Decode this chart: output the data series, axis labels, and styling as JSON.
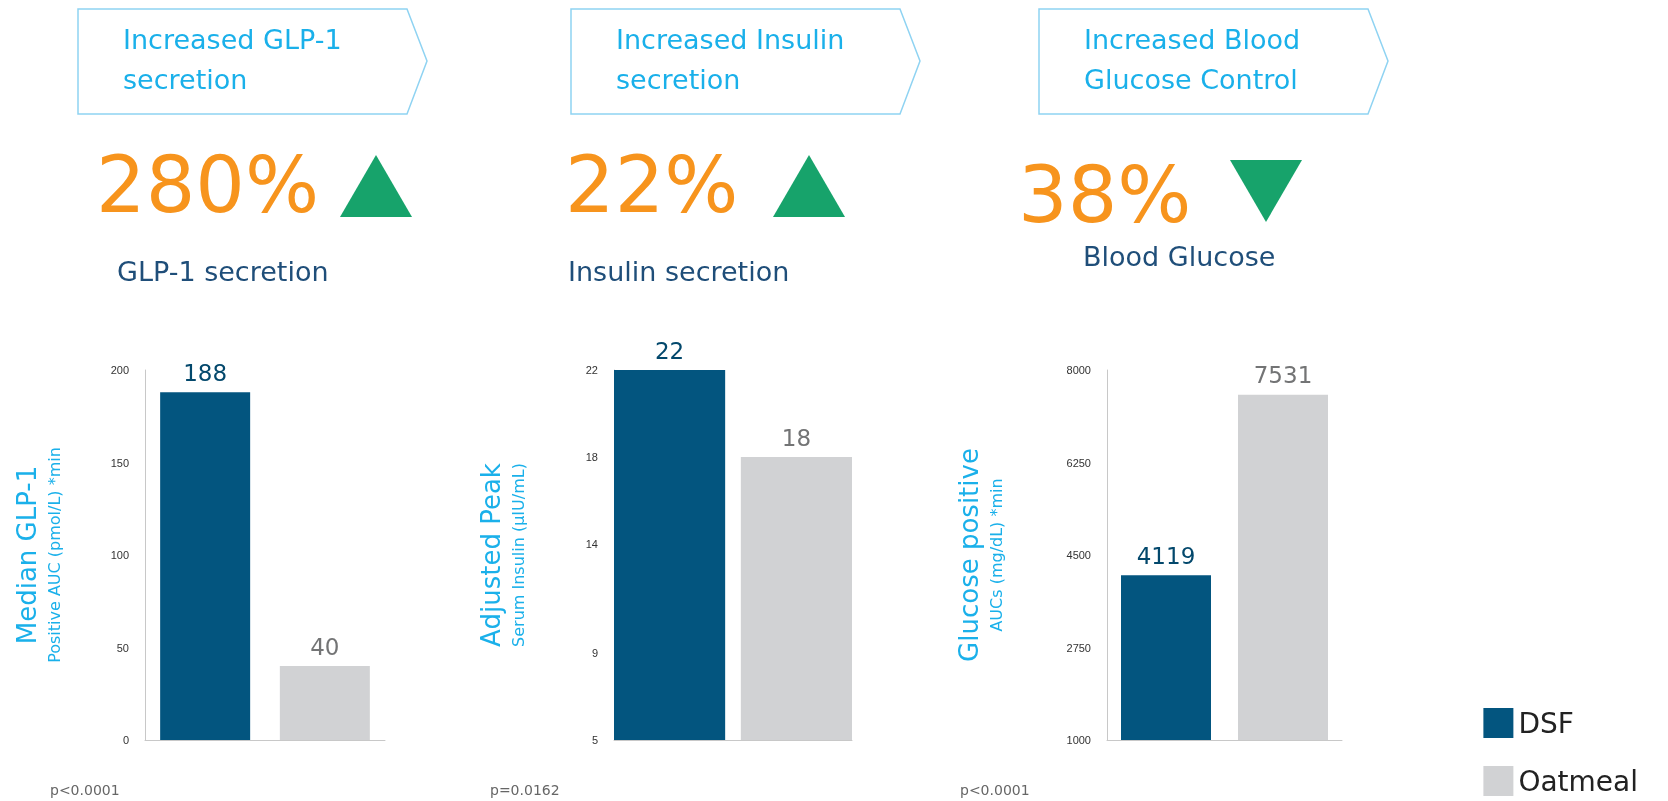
{
  "chart_data": [
    {
      "type": "bar",
      "title": "Increased GLP-1 secretion",
      "subtitle": "GLP-1 secretion",
      "ylabel": "Median GLP-1\nPositive AUC (pmol/L) *min",
      "categories": [
        null
      ],
      "series": [
        {
          "color": "#03557f",
          "values": [
            188
          ]
        },
        {
          "color": "#d1d2d4",
          "values": [
            40
          ]
        }
      ],
      "ylim": [
        0,
        200
      ],
      "yticks": [
        0,
        50,
        100,
        150,
        200
      ],
      "grid": false,
      "data_labels": true,
      "annotations": [
        "280%",
        "p<0.0001"
      ]
    },
    {
      "type": "bar",
      "title": "Increased Insulin secretion",
      "subtitle": "Insulin secretion",
      "ylabel": "Adjusted Peak\nSerum Insulin (µIU/mL)",
      "categories": [
        null
      ],
      "series": [
        {
          "color": "#03557f",
          "values": [
            22
          ]
        },
        {
          "color": "#d1d2d4",
          "values": [
            18
          ]
        }
      ],
      "ylim": [
        5,
        22
      ],
      "yticks": [
        5,
        9,
        14,
        18,
        22
      ],
      "grid": false,
      "data_labels": true,
      "annotations": [
        "22%",
        "p=0.0162"
      ]
    },
    {
      "type": "bar",
      "title": "Increased Blood Glucose Control",
      "subtitle": "Blood Glucose",
      "ylabel": "Glucose positive\nAUCs (mg/dL) *min",
      "categories": [
        null
      ],
      "series": [
        {
          "name": "DSF",
          "color": "#03557f",
          "values": [
            4119
          ]
        },
        {
          "name": "Oatmeal",
          "color": "#d1d2d4",
          "values": [
            7531
          ]
        }
      ],
      "ylim": [
        1000,
        8000
      ],
      "yticks": [
        1000,
        2750,
        4500,
        6250,
        8000
      ],
      "grid": false,
      "data_labels": true,
      "legend": "bottom right",
      "annotations": [
        "38%",
        "p<0.0001"
      ]
    }
  ]
}
